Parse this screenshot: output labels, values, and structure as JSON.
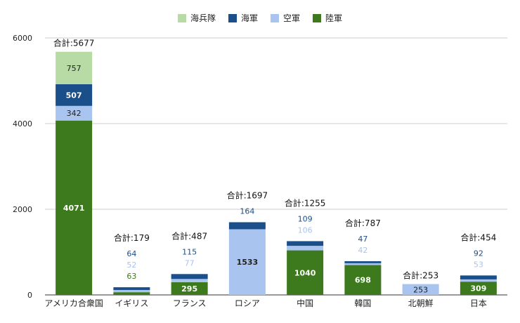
{
  "chart_data": {
    "type": "bar",
    "stacked": true,
    "categories": [
      "アメリカ合衆国",
      "イギリス",
      "フランス",
      "ロシア",
      "中国",
      "韓国",
      "北朝鮮",
      "日本"
    ],
    "series": [
      {
        "name": "陸軍",
        "color": "#3d7a1e",
        "values": [
          4071,
          63,
          295,
          0,
          1040,
          698,
          0,
          309
        ]
      },
      {
        "name": "空軍",
        "color": "#a9c4ef",
        "values": [
          342,
          52,
          77,
          1533,
          106,
          42,
          253,
          53
        ]
      },
      {
        "name": "海軍",
        "color": "#1b4f8a",
        "values": [
          507,
          64,
          115,
          164,
          109,
          47,
          0,
          92
        ]
      },
      {
        "name": "海兵隊",
        "color": "#b8dba6",
        "values": [
          757,
          0,
          0,
          0,
          0,
          0,
          0,
          0
        ]
      }
    ],
    "legend_order": [
      "海兵隊",
      "海軍",
      "空軍",
      "陸軍"
    ],
    "totals": [
      5677,
      179,
      487,
      1697,
      1255,
      787,
      253,
      454
    ],
    "total_prefix": "合計:",
    "ylim": [
      0,
      6000
    ],
    "yticks": [
      0,
      2000,
      4000,
      6000
    ],
    "grid": true,
    "legend_position": "top"
  }
}
